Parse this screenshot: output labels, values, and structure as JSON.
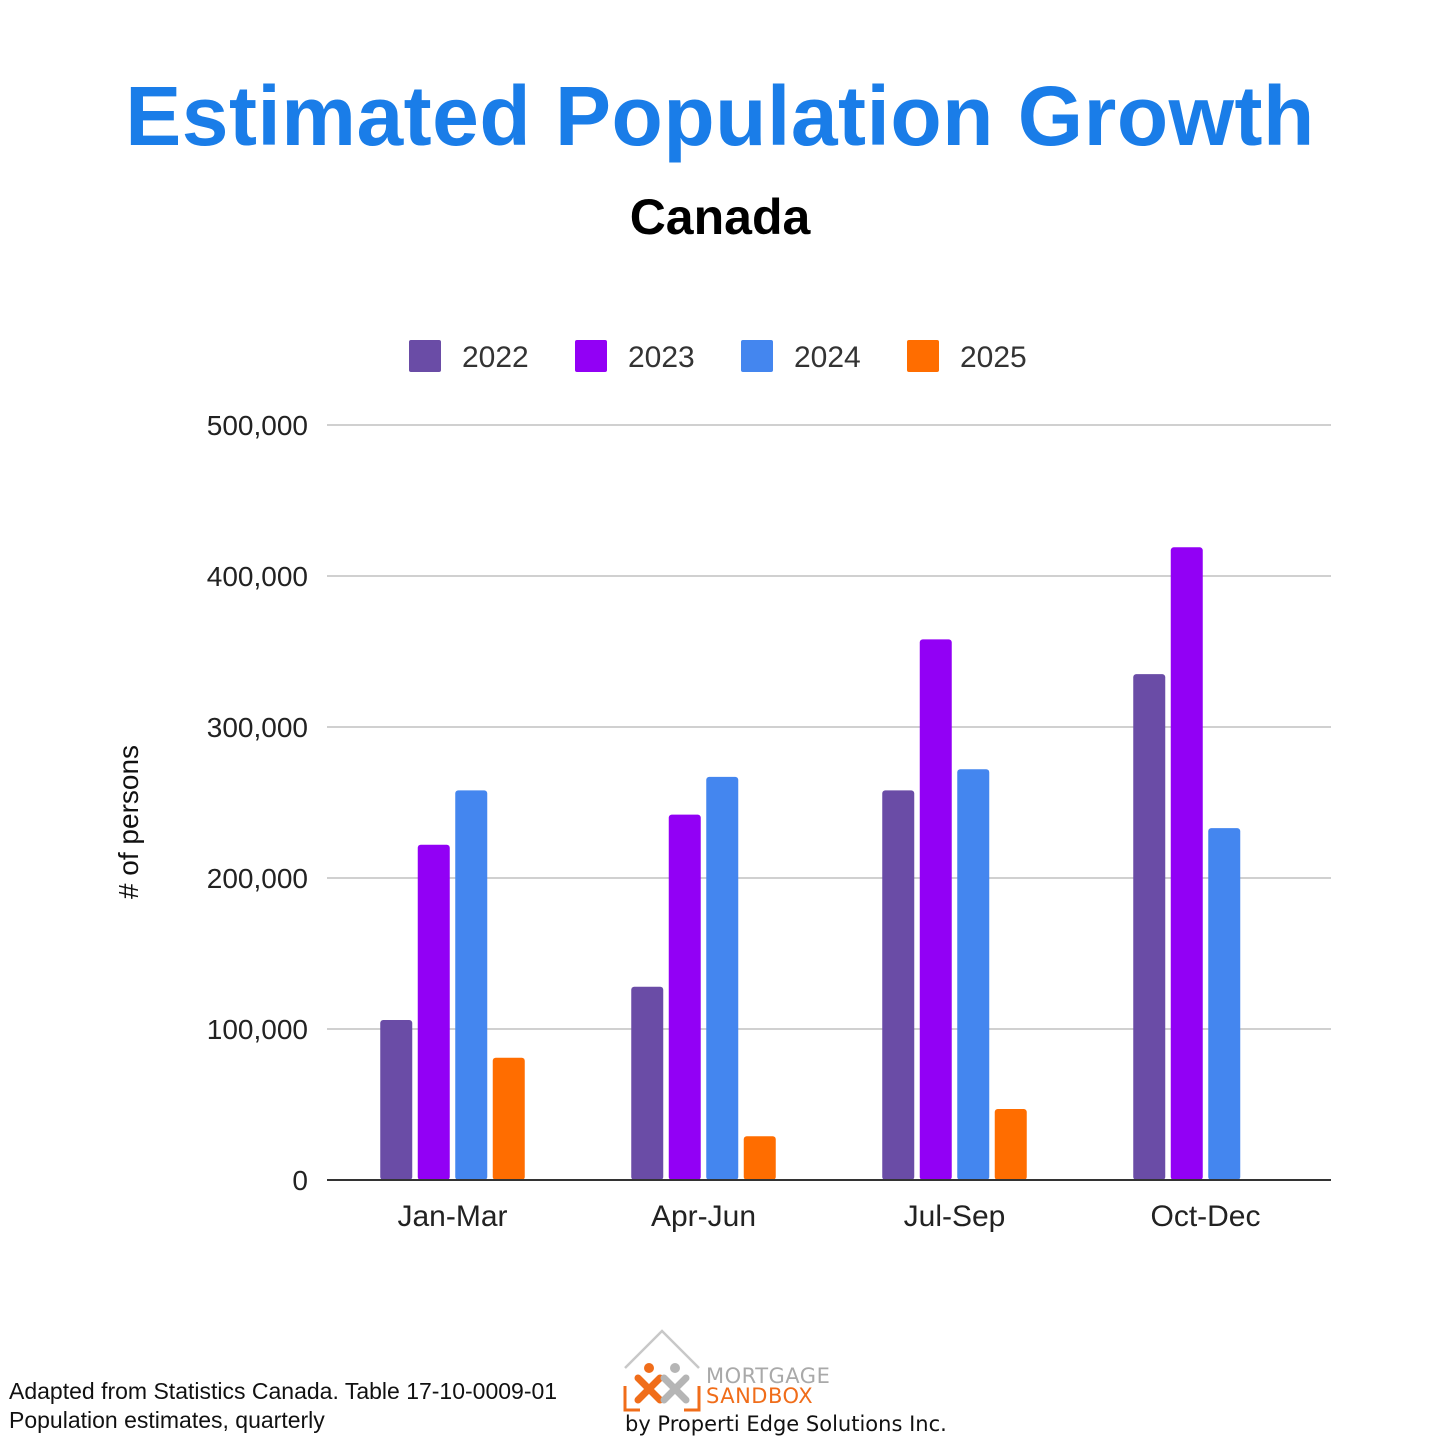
{
  "header": {
    "title": "Estimated Population Growth",
    "subtitle": "Canada"
  },
  "chart_data": {
    "type": "bar",
    "categories": [
      "Jan-Mar",
      "Apr-Jun",
      "Jul-Sep",
      "Oct-Dec"
    ],
    "series": [
      {
        "name": "2022",
        "color": "#6a4ca6",
        "values": [
          106000,
          128000,
          258000,
          335000
        ]
      },
      {
        "name": "2023",
        "color": "#9200f5",
        "values": [
          222000,
          242000,
          358000,
          419000
        ]
      },
      {
        "name": "2024",
        "color": "#4486ef",
        "values": [
          258000,
          267000,
          272000,
          233000
        ]
      },
      {
        "name": "2025",
        "color": "#ff6d00",
        "values": [
          81000,
          29000,
          47000,
          null
        ]
      }
    ],
    "ylabel": "# of persons",
    "ylim": [
      0,
      500000
    ],
    "yticks": [
      0,
      100000,
      200000,
      300000,
      400000,
      500000
    ],
    "ytick_labels": [
      "0",
      "100,000",
      "200,000",
      "300,000",
      "400,000",
      "500,000"
    ],
    "legend_position": "top",
    "grid": true
  },
  "footer": {
    "source_line1": "Adapted from Statistics Canada. Table 17-10-0009-01",
    "source_line2": "Population estimates, quarterly",
    "logo_word1": "MORTGAGE",
    "logo_word2": "SANDBOX",
    "logo_tagline": "by Properti Edge Solutions Inc."
  }
}
